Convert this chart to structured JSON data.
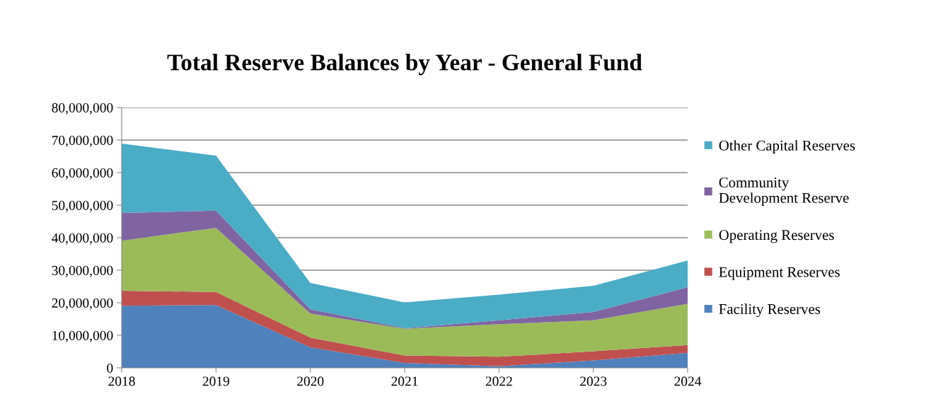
{
  "chart_data": {
    "type": "area",
    "stacked": true,
    "title": "Total Reserve Balances by Year - General Fund",
    "categories": [
      "2018",
      "2019",
      "2020",
      "2021",
      "2022",
      "2023",
      "2024"
    ],
    "series": [
      {
        "name": "Facility Reserves",
        "color": "#4f81bd",
        "values": [
          19100000,
          19300000,
          6300000,
          1500000,
          500000,
          2300000,
          4600000
        ]
      },
      {
        "name": "Equipment Reserves",
        "color": "#c0504d",
        "values": [
          4600000,
          4000000,
          3000000,
          2300000,
          2900000,
          2800000,
          2400000
        ]
      },
      {
        "name": "Operating Reserves",
        "color": "#9bbb59",
        "values": [
          15400000,
          19700000,
          7400000,
          8200000,
          10000000,
          9500000,
          12700000
        ]
      },
      {
        "name": "Community\nDevelopment Reserve",
        "color": "#8064a2",
        "values": [
          8500000,
          5300000,
          1300000,
          200000,
          1200000,
          2600000,
          5100000
        ]
      },
      {
        "name": "Other Capital Reserves",
        "color": "#4bacc6",
        "values": [
          21300000,
          16900000,
          8100000,
          7900000,
          7900000,
          8000000,
          8200000
        ]
      }
    ],
    "ylim": [
      0,
      80000000
    ],
    "yticks": [
      {
        "value": 0,
        "label": "0"
      },
      {
        "value": 10000000,
        "label": "10,000,000"
      },
      {
        "value": 20000000,
        "label": "20,000,000"
      },
      {
        "value": 30000000,
        "label": "30,000,000"
      },
      {
        "value": 40000000,
        "label": "40,000,000"
      },
      {
        "value": 50000000,
        "label": "50,000,000"
      },
      {
        "value": 60000000,
        "label": "60,000,000"
      },
      {
        "value": 70000000,
        "label": "70,000,000"
      },
      {
        "value": 80000000,
        "label": "80,000,000"
      }
    ],
    "grid": "y",
    "legend": "right"
  }
}
